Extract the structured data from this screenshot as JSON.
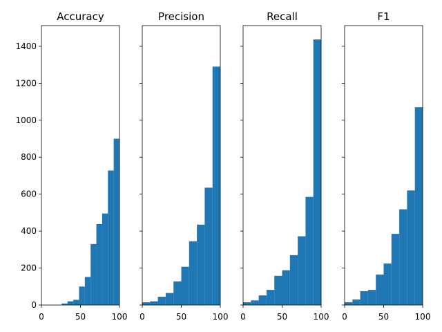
{
  "chart_data": [
    {
      "type": "histogram",
      "title": "Accuracy",
      "color": "#1f77b4",
      "bins": [
        26,
        33.4,
        40.8,
        48.2,
        55.6,
        63,
        70.4,
        77.8,
        85.2,
        92.6,
        100
      ],
      "values": [
        8,
        20,
        28,
        100,
        152,
        330,
        438,
        495,
        728,
        900
      ],
      "xlim": [
        0,
        100
      ],
      "xticks": [
        0,
        50,
        100
      ],
      "ylim": [
        0,
        1512
      ],
      "yticks": [
        0,
        200,
        400,
        600,
        800,
        1000,
        1200,
        1400
      ]
    },
    {
      "type": "histogram",
      "title": "Precision",
      "color": "#1f77b4",
      "bins": [
        0,
        10,
        20,
        30,
        40,
        50,
        60,
        70,
        80,
        90,
        100
      ],
      "values": [
        15,
        20,
        45,
        65,
        128,
        207,
        345,
        435,
        635,
        1290
      ],
      "xlim": [
        0,
        100
      ],
      "xticks": [
        0,
        50,
        100
      ],
      "ylim": [
        0,
        1512
      ]
    },
    {
      "type": "histogram",
      "title": "Recall",
      "color": "#1f77b4",
      "bins": [
        0,
        10,
        20,
        30,
        40,
        50,
        60,
        70,
        80,
        90,
        100
      ],
      "values": [
        15,
        25,
        52,
        82,
        158,
        188,
        270,
        372,
        585,
        1437
      ],
      "xlim": [
        0,
        100
      ],
      "xticks": [
        0,
        50,
        100
      ],
      "ylim": [
        0,
        1512
      ]
    },
    {
      "type": "histogram",
      "title": "F1",
      "color": "#1f77b4",
      "bins": [
        0,
        10,
        20,
        30,
        40,
        50,
        60,
        70,
        80,
        90,
        100
      ],
      "values": [
        15,
        30,
        75,
        82,
        165,
        225,
        385,
        518,
        620,
        1070
      ],
      "xlim": [
        0,
        100
      ],
      "xticks": [
        0,
        50,
        100
      ],
      "ylim": [
        0,
        1512
      ]
    }
  ]
}
